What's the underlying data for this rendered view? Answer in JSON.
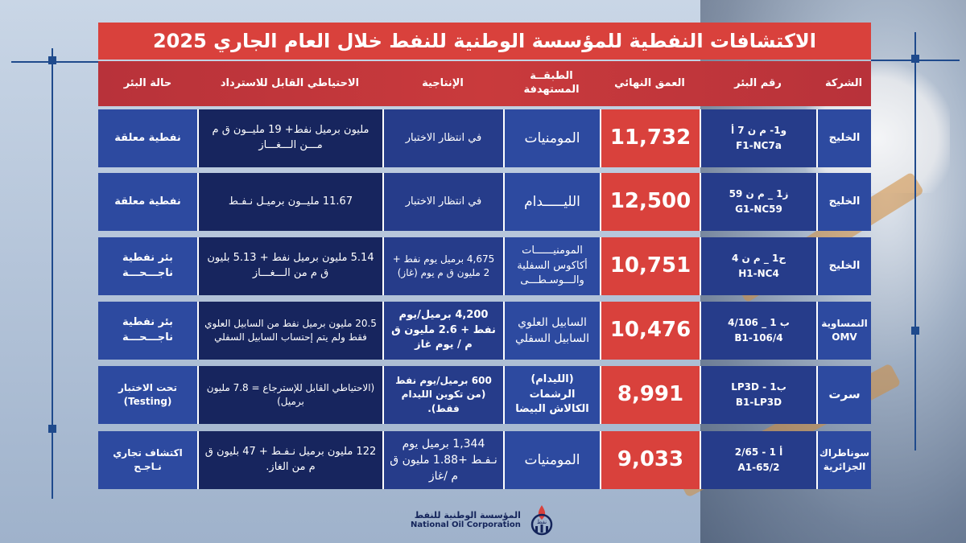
{
  "title": "الاكتشافات النفطية للمؤسسة الوطنية للنفط خلال العام الجاري 2025",
  "columns": {
    "company": "الشركة",
    "well": "رقم البئر",
    "depth": "العمق النهائي",
    "layer": "الطبقــة المستهدفة",
    "production": "الإنتاجية",
    "reserves": "الاحتياطي القابل للاسترداد",
    "status": "حالة البئر"
  },
  "rows": [
    {
      "company": "الخليج",
      "well_ar": "و1- م ن 7 أ",
      "well_en": "F1-NC7a",
      "depth": "11,732",
      "layer": "المومنيات",
      "production": "في انتظار الاختبار",
      "reserves": "مليون برميل نفط+ 19 مليــون ق م مـــن الـــغـــاز",
      "status": "نفطية معلقة"
    },
    {
      "company": "الخليج",
      "well_ar": "ز1 _ م ن 59",
      "well_en": "G1-NC59",
      "depth": "12,500",
      "layer": "الليـــــدام",
      "production": "في انتظار الاختبار",
      "reserves": "11.67 مليــون برميـل نـفـط",
      "status": "نفطية معلقة"
    },
    {
      "company": "الخليج",
      "well_ar": "ح1 _ م ن 4",
      "well_en": "H1-NC4",
      "depth": "10,751",
      "layer": "المومنيــــــات أكاكوس السفلية والـــوسـطـــى",
      "production": "4,675 برميل يوم نفط + 2 مليون ق م يوم (غاز)",
      "reserves": "5.14 مليون برميل نفط + 5.13 بليون ق م من الـــغـــاز",
      "status": "بئر نفطية ناجـــحـــة"
    },
    {
      "company": "النمساوية OMV",
      "well_ar": "ب 1 _ 4/106",
      "well_en": "B1-106/4",
      "depth": "10,476",
      "layer": "السابيل العلوي السابيل السفلي",
      "production": "4,200 برميل/يوم نفط + 2.6 مليون ق م / يوم غاز",
      "reserves": "20.5 مليون برميل نفط من السابيل العلوي فقط ولم يتم إحتساب السابيل السفلي",
      "status": "بئر نفطية ناجـــحـــة"
    },
    {
      "company": "سرت",
      "well_ar": "ب1 - LP3D",
      "well_en": "B1-LP3D",
      "depth": "8,991",
      "layer": "(الليدام) الرشمات الكالاش البيضا",
      "production": "600 برميل/يوم نفط (من تكوين الليدام فقط).",
      "reserves": "(الاحتياطي القابل للإسترجاع = 7.8 مليون برميل)",
      "status": "تحت الاختبار (Testing)"
    },
    {
      "company": "سوناطراك الجزائرية",
      "well_ar": "أ 1 - 2/65",
      "well_en": "A1-65/2",
      "depth": "9,033",
      "layer": "المومنيات",
      "production": "1,344 برميل يوم نـفـط +1.88 مليون ق م /غاز",
      "reserves": "122 مليون برميل نـفـط + 47 بليون ق م من الغاز.",
      "status": "اكتشاف تجاري نـاجـح"
    }
  ],
  "footer": {
    "name_ar": "المؤسسة الوطنية للنفط",
    "name_en": "National Oil Corporation",
    "logo_text": "نفط"
  },
  "colors": {
    "title_bg": "#d9413c",
    "row_bg": "#2a3f86",
    "depth_bg": "#d9413c",
    "reserves_bg": "#17255e"
  }
}
